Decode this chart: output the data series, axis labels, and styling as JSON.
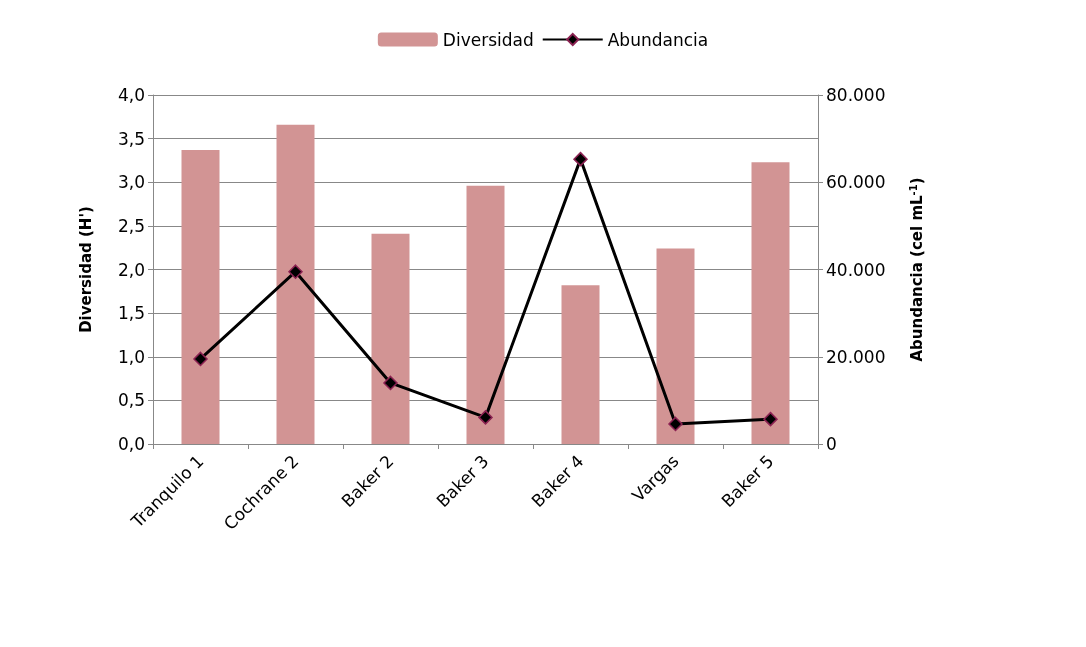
{
  "chart_data": {
    "type": "bar",
    "categories": [
      "Tranquilo 1",
      "Cochrane 2",
      "Baker 2",
      "Baker 3",
      "Baker 4",
      "Vargas",
      "Baker 5"
    ],
    "series": [
      {
        "name": "Diversidad",
        "color": "#d29494",
        "values": [
          3.37,
          3.66,
          2.41,
          2.96,
          1.82,
          2.24,
          3.23
        ]
      },
      {
        "name": "Abundancia",
        "type": "line",
        "axis": "y2",
        "color": "#000000",
        "marker": "diamond",
        "values": [
          19500,
          39500,
          14000,
          6100,
          65300,
          4600,
          5700
        ]
      }
    ],
    "ylabel": "Diversidad (H')",
    "y2label": "Abundancia (cel mL$^{-1}$)",
    "ylim": [
      0,
      4
    ],
    "yticks": [
      {
        "value": 0,
        "label": "0,0"
      },
      {
        "value": 0.5,
        "label": "0,5"
      },
      {
        "value": 1,
        "label": "1,0"
      },
      {
        "value": 1.5,
        "label": "1,5"
      },
      {
        "value": 2,
        "label": "2,0"
      },
      {
        "value": 2.5,
        "label": "2,5"
      },
      {
        "value": 3,
        "label": "3,0"
      },
      {
        "value": 3.5,
        "label": "3,5"
      },
      {
        "value": 4,
        "label": "4,0"
      }
    ],
    "y2lim": [
      0,
      80000
    ],
    "y2ticks": [
      0,
      {
        "value": 20000,
        "label": "20.000"
      },
      {
        "value": 40000,
        "label": "40.000"
      },
      {
        "value": 60000,
        "label": "60.000"
      },
      {
        "value": 80000,
        "label": "80.000"
      }
    ],
    "grid": "y",
    "legend": "top"
  }
}
